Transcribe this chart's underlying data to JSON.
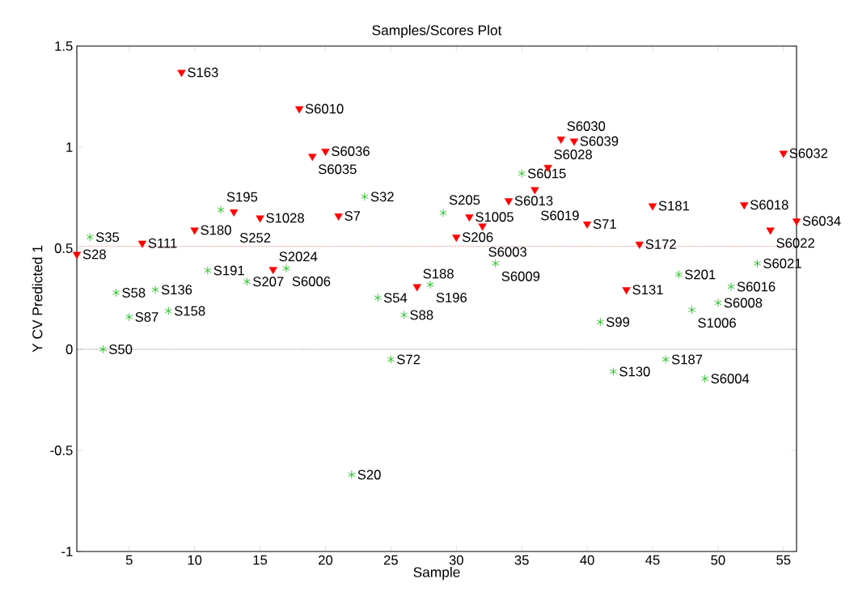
{
  "chart_data": {
    "type": "scatter",
    "title": "Samples/Scores Plot",
    "xlabel": "Sample",
    "ylabel": "Y CV Predicted 1",
    "xlim": [
      1,
      56
    ],
    "ylim": [
      -1,
      1.5
    ],
    "xticks": [
      5,
      10,
      15,
      20,
      25,
      30,
      35,
      40,
      45,
      50,
      55
    ],
    "yticks": [
      -1,
      -0.5,
      0,
      0.5,
      1,
      1.5
    ],
    "series": [
      {
        "color": "#ff0000",
        "marker": "triangle",
        "x": [
          1,
          6,
          9,
          10,
          13,
          15,
          16,
          18,
          19,
          20,
          21,
          27,
          30,
          31,
          32,
          34,
          36,
          37,
          38,
          39,
          40,
          43,
          44,
          45,
          52,
          54,
          55,
          56
        ],
        "values": [
          0.47,
          0.525,
          1.37,
          0.59,
          0.68,
          0.65,
          0.395,
          1.19,
          0.955,
          0.98,
          0.66,
          0.31,
          0.555,
          0.655,
          0.61,
          0.735,
          0.79,
          0.9,
          1.04,
          1.03,
          0.62,
          0.295,
          0.52,
          0.71,
          0.715,
          0.59,
          0.97,
          0.635
        ]
      },
      {
        "color": "#00b400",
        "marker": "cross",
        "x": [
          2,
          3,
          4,
          5,
          7,
          8,
          11,
          12,
          14,
          17,
          22,
          23,
          24,
          25,
          26,
          28,
          29,
          33,
          35,
          41,
          42,
          46,
          47,
          48,
          49,
          50,
          51,
          53
        ],
        "values": [
          0.555,
          0,
          0.28,
          0.16,
          0.295,
          0.19,
          0.39,
          0.69,
          0.335,
          0.4,
          -0.62,
          0.755,
          0.255,
          -0.05,
          0.17,
          0.32,
          0.675,
          0.425,
          0.87,
          0.135,
          -0.11,
          -0.05,
          0.37,
          0.195,
          -0.145,
          0.23,
          0.31,
          0.425
        ]
      }
    ],
    "ref_lines": [
      {
        "axis": "y",
        "value": 0,
        "color": "#000000",
        "line_style": "dotted"
      },
      {
        "axis": "y",
        "value": 0.51,
        "color": "#ff0000",
        "line_style": "dotted"
      }
    ],
    "annotations": [
      {
        "text": "S28",
        "x": 1,
        "y": 0.47
      },
      {
        "text": "S35",
        "x": 2,
        "y": 0.555
      },
      {
        "text": "S50",
        "x": 3,
        "y": 0
      },
      {
        "text": "S58",
        "x": 4,
        "y": 0.28
      },
      {
        "text": "S87",
        "x": 5,
        "y": 0.16
      },
      {
        "text": "S111",
        "x": 6,
        "y": 0.525
      },
      {
        "text": "S136",
        "x": 7,
        "y": 0.295
      },
      {
        "text": "S158",
        "x": 8,
        "y": 0.19
      },
      {
        "text": "S163",
        "x": 9,
        "y": 1.37
      },
      {
        "text": "S180",
        "x": 10,
        "y": 0.59
      },
      {
        "text": "S191",
        "x": 11,
        "y": 0.39
      },
      {
        "text": "S195",
        "x": 12,
        "y": 0.69
      },
      {
        "text": "S252",
        "x": 13,
        "y": 0.68
      },
      {
        "text": "S207",
        "x": 14,
        "y": 0.335
      },
      {
        "text": "S1028",
        "x": 15,
        "y": 0.65
      },
      {
        "text": "S2024",
        "x": 16,
        "y": 0.395
      },
      {
        "text": "S6006",
        "x": 17,
        "y": 0.4
      },
      {
        "text": "S6010",
        "x": 18,
        "y": 1.19
      },
      {
        "text": "S6035",
        "x": 19,
        "y": 0.955
      },
      {
        "text": "S6036",
        "x": 20,
        "y": 0.98
      },
      {
        "text": "S7",
        "x": 21,
        "y": 0.66
      },
      {
        "text": "S20",
        "x": 22,
        "y": -0.62
      },
      {
        "text": "S32",
        "x": 23,
        "y": 0.755
      },
      {
        "text": "S54",
        "x": 24,
        "y": 0.255
      },
      {
        "text": "S72",
        "x": 25,
        "y": -0.05
      },
      {
        "text": "S88",
        "x": 26,
        "y": 0.17
      },
      {
        "text": "S188",
        "x": 27,
        "y": 0.31
      },
      {
        "text": "S196",
        "x": 28,
        "y": 0.32
      },
      {
        "text": "S205",
        "x": 29,
        "y": 0.675
      },
      {
        "text": "S206",
        "x": 30,
        "y": 0.555
      },
      {
        "text": "S1005",
        "x": 31,
        "y": 0.655
      },
      {
        "text": "S6003",
        "x": 32,
        "y": 0.61
      },
      {
        "text": "S6009",
        "x": 33,
        "y": 0.425
      },
      {
        "text": "S6013",
        "x": 34,
        "y": 0.735
      },
      {
        "text": "S6015",
        "x": 35,
        "y": 0.87
      },
      {
        "text": "S6019",
        "x": 36,
        "y": 0.79
      },
      {
        "text": "S6028",
        "x": 37,
        "y": 0.9
      },
      {
        "text": "S6030",
        "x": 38,
        "y": 1.04
      },
      {
        "text": "S6039",
        "x": 39,
        "y": 1.03
      },
      {
        "text": "S71",
        "x": 40,
        "y": 0.62
      },
      {
        "text": "S99",
        "x": 41,
        "y": 0.135
      },
      {
        "text": "S130",
        "x": 42,
        "y": -0.11
      },
      {
        "text": "S131",
        "x": 43,
        "y": 0.295
      },
      {
        "text": "S172",
        "x": 44,
        "y": 0.52
      },
      {
        "text": "S181",
        "x": 45,
        "y": 0.71
      },
      {
        "text": "S187",
        "x": 46,
        "y": -0.05
      },
      {
        "text": "S201",
        "x": 47,
        "y": 0.37
      },
      {
        "text": "S1006",
        "x": 48,
        "y": 0.195
      },
      {
        "text": "S6004",
        "x": 49,
        "y": -0.145
      },
      {
        "text": "S6008",
        "x": 50,
        "y": 0.23
      },
      {
        "text": "S6016",
        "x": 51,
        "y": 0.31
      },
      {
        "text": "S6018",
        "x": 52,
        "y": 0.715
      },
      {
        "text": "S6021",
        "x": 53,
        "y": 0.425
      },
      {
        "text": "S6022",
        "x": 54,
        "y": 0.59
      },
      {
        "text": "S6032",
        "x": 55,
        "y": 0.97
      },
      {
        "text": "S6034",
        "x": 56,
        "y": 0.635
      }
    ]
  }
}
